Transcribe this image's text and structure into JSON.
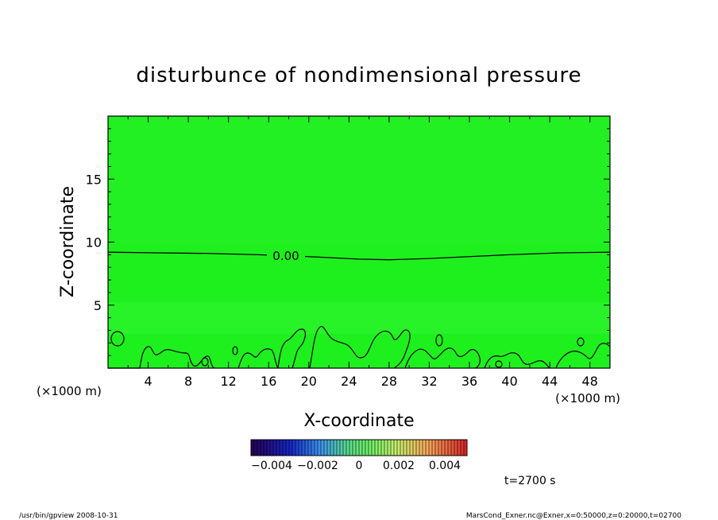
{
  "chart_data": {
    "type": "contour",
    "title": "disturbunce of nondimensional pressure",
    "xlabel": "X-coordinate",
    "ylabel": "Z-coordinate",
    "x_unit_left": "(×1000 m)",
    "x_unit_right": "(×1000 m)",
    "xlim": [
      0,
      50
    ],
    "ylim": [
      0,
      20
    ],
    "xticks": [
      "4",
      "8",
      "12",
      "16",
      "20",
      "24",
      "28",
      "32",
      "36",
      "40",
      "44",
      "48"
    ],
    "yticks": [
      "5",
      "10",
      "15"
    ],
    "contour_label": "0.00",
    "zero_contour": {
      "x": [
        0,
        5,
        10,
        15,
        20,
        25,
        28,
        32,
        36,
        40,
        45,
        50
      ],
      "z": [
        9.2,
        9.15,
        9.1,
        9.0,
        8.85,
        8.65,
        8.6,
        8.7,
        8.85,
        9.0,
        9.15,
        9.2
      ]
    },
    "colorbar": {
      "tick_labels": [
        "−0.004",
        "−0.002",
        "0",
        "0.002",
        "0.004"
      ],
      "range": [
        -0.005,
        0.005
      ]
    },
    "time_label": "t=2700 s",
    "colors": {
      "field": "#1ef01e",
      "field_light": "#46f546",
      "contour": "#000000"
    }
  },
  "footer": {
    "left": "/usr/bin/gpview   2008-10-31",
    "right": "MarsCond_Exner.nc@Exner,x=0:50000,z=0:20000,t=02700"
  }
}
